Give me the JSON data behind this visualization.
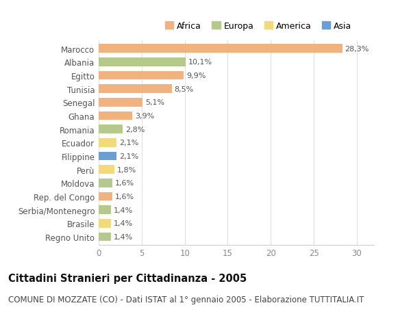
{
  "countries": [
    "Marocco",
    "Albania",
    "Egitto",
    "Tunisia",
    "Senegal",
    "Ghana",
    "Romania",
    "Ecuador",
    "Filippine",
    "Perù",
    "Moldova",
    "Rep. del Congo",
    "Serbia/Montenegro",
    "Brasile",
    "Regno Unito"
  ],
  "values": [
    28.3,
    10.1,
    9.9,
    8.5,
    5.1,
    3.9,
    2.8,
    2.1,
    2.1,
    1.8,
    1.6,
    1.6,
    1.4,
    1.4,
    1.4
  ],
  "labels": [
    "28,3%",
    "10,1%",
    "9,9%",
    "8,5%",
    "5,1%",
    "3,9%",
    "2,8%",
    "2,1%",
    "2,1%",
    "1,8%",
    "1,6%",
    "1,6%",
    "1,4%",
    "1,4%",
    "1,4%"
  ],
  "continents": [
    "Africa",
    "Europa",
    "Africa",
    "Africa",
    "Africa",
    "Africa",
    "Europa",
    "America",
    "Asia",
    "America",
    "Europa",
    "Africa",
    "Europa",
    "America",
    "Europa"
  ],
  "colors": {
    "Africa": "#F2B27E",
    "Europa": "#B5C98A",
    "America": "#F2D97A",
    "Asia": "#6B9FD4"
  },
  "legend_labels": [
    "Africa",
    "Europa",
    "America",
    "Asia"
  ],
  "legend_colors": [
    "#F2B27E",
    "#B5C98A",
    "#F2D97A",
    "#6B9FD4"
  ],
  "title": "Cittadini Stranieri per Cittadinanza - 2005",
  "subtitle": "COMUNE DI MOZZATE (CO) - Dati ISTAT al 1° gennaio 2005 - Elaborazione TUTTITALIA.IT",
  "xlim": [
    0,
    32
  ],
  "xticks": [
    0,
    5,
    10,
    15,
    20,
    25,
    30
  ],
  "background_color": "#ffffff",
  "bar_height": 0.65,
  "title_fontsize": 10.5,
  "subtitle_fontsize": 8.5,
  "label_fontsize": 8,
  "tick_fontsize": 8.5,
  "legend_fontsize": 9
}
